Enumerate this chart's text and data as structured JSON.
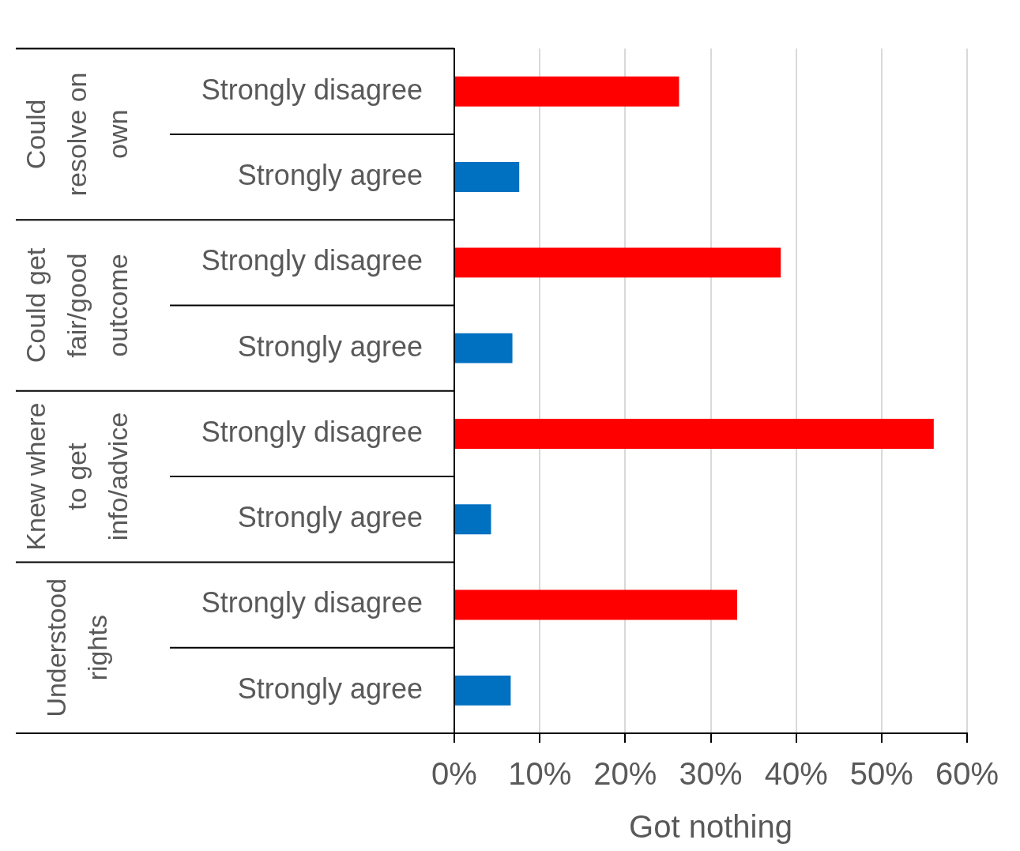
{
  "chart_data": {
    "type": "bar",
    "orientation": "horizontal",
    "categories": [
      "Strongly disagree",
      "Strongly agree",
      "Strongly disagree",
      "Strongly agree",
      "Strongly disagree",
      "Strongly agree",
      "Strongly disagree",
      "Strongly agree"
    ],
    "values": [
      26.3,
      7.6,
      38.2,
      6.8,
      56.1,
      4.3,
      33.1,
      6.6
    ],
    "colors": [
      "#ff0000",
      "#0070c0",
      "#ff0000",
      "#0070c0",
      "#ff0000",
      "#0070c0",
      "#ff0000",
      "#0070c0"
    ],
    "xlim": [
      0,
      60
    ],
    "xticks": [
      {
        "value": 0,
        "label": "0%"
      },
      {
        "value": 10,
        "label": "10%"
      },
      {
        "value": 20,
        "label": "20%"
      },
      {
        "value": 30,
        "label": "30%"
      },
      {
        "value": 40,
        "label": "40%"
      },
      {
        "value": 50,
        "label": "50%"
      },
      {
        "value": 60,
        "label": "60%"
      }
    ],
    "xlabel": "Got nothing",
    "grid": "x",
    "annotations": [
      "Could resolve on own",
      "Could get fair/good outcome",
      "Knew where to get info/advice",
      "Understood rights"
    ]
  }
}
